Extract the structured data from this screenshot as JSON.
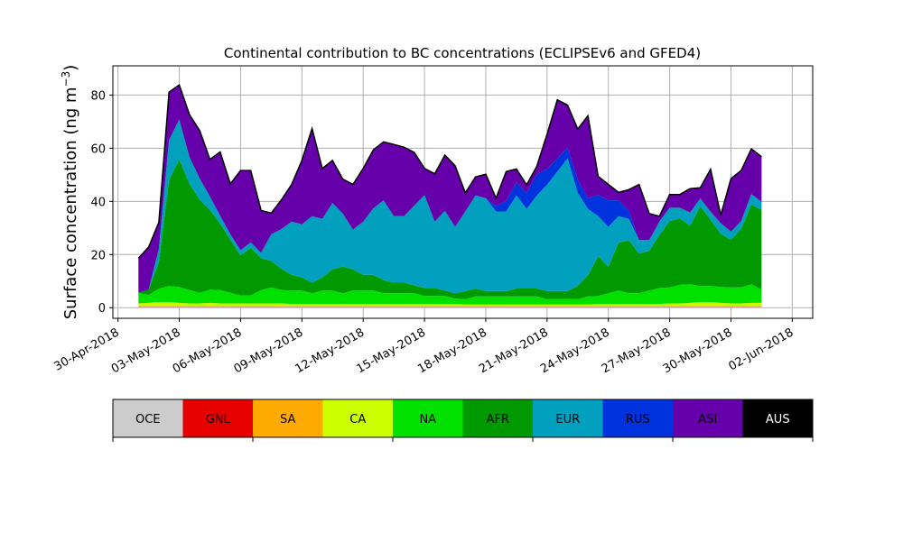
{
  "chart_data": {
    "type": "area",
    "stacked": true,
    "title": "Continental contribution to BC concentrations (ECLIPSEv6 and GFED4)",
    "ylabel_main": "Surface concentration (ng m",
    "ylabel_sup": "−3",
    "ylabel_end": ")",
    "xlabel": "",
    "grid": true,
    "ylim": [
      -4,
      91
    ],
    "xlim": [
      "2018-04-29T18:00",
      "2018-06-03T00:00"
    ],
    "x_ticks": [
      "30-Apr-2018",
      "03-May-2018",
      "06-May-2018",
      "09-May-2018",
      "12-May-2018",
      "15-May-2018",
      "18-May-2018",
      "21-May-2018",
      "24-May-2018",
      "27-May-2018",
      "30-May-2018",
      "02-Jun-2018"
    ],
    "y_ticks": [
      0,
      20,
      40,
      60,
      80
    ],
    "x": [
      "2018-05-01",
      "2018-05-01T12:00",
      "2018-05-02",
      "2018-05-02T12:00",
      "2018-05-03",
      "2018-05-03T12:00",
      "2018-05-04",
      "2018-05-04T12:00",
      "2018-05-05",
      "2018-05-05T12:00",
      "2018-05-06",
      "2018-05-06T12:00",
      "2018-05-07",
      "2018-05-07T12:00",
      "2018-05-08",
      "2018-05-08T12:00",
      "2018-05-09",
      "2018-05-09T12:00",
      "2018-05-10",
      "2018-05-10T12:00",
      "2018-05-11",
      "2018-05-11T12:00",
      "2018-05-12",
      "2018-05-12T12:00",
      "2018-05-13",
      "2018-05-13T12:00",
      "2018-05-14",
      "2018-05-14T12:00",
      "2018-05-15",
      "2018-05-15T12:00",
      "2018-05-16",
      "2018-05-16T12:00",
      "2018-05-17",
      "2018-05-17T12:00",
      "2018-05-18",
      "2018-05-18T12:00",
      "2018-05-19",
      "2018-05-19T12:00",
      "2018-05-20",
      "2018-05-20T12:00",
      "2018-05-21",
      "2018-05-21T12:00",
      "2018-05-22",
      "2018-05-22T12:00",
      "2018-05-23",
      "2018-05-23T12:00",
      "2018-05-24",
      "2018-05-24T12:00",
      "2018-05-25",
      "2018-05-25T12:00",
      "2018-05-26",
      "2018-05-26T12:00",
      "2018-05-27",
      "2018-05-27T12:00",
      "2018-05-28",
      "2018-05-28T12:00",
      "2018-05-29",
      "2018-05-29T12:00",
      "2018-05-30",
      "2018-05-30T12:00",
      "2018-05-31",
      "2018-05-31T12:00"
    ],
    "series": [
      {
        "name": "OCE",
        "color": "#cccccc",
        "values": [
          0.3,
          0.3,
          0.3,
          0.3,
          0.3,
          0.3,
          0.3,
          0.3,
          0.3,
          0.3,
          0.3,
          0.3,
          0.3,
          0.3,
          0.3,
          0.3,
          0.3,
          0.3,
          0.3,
          0.3,
          0.3,
          0.3,
          0.3,
          0.3,
          0.3,
          0.3,
          0.3,
          0.3,
          0.3,
          0.3,
          0.3,
          0.3,
          0.3,
          0.3,
          0.3,
          0.3,
          0.3,
          0.3,
          0.3,
          0.3,
          0.3,
          0.3,
          0.3,
          0.3,
          0.3,
          0.3,
          0.3,
          0.3,
          0.3,
          0.3,
          0.3,
          0.3,
          0.3,
          0.3,
          0.3,
          0.3,
          0.3,
          0.3,
          0.3,
          0.3,
          0.3,
          0.3
        ]
      },
      {
        "name": "GNL",
        "color": "#e60000",
        "values": [
          0.1,
          0.1,
          0.1,
          0.1,
          0.1,
          0.1,
          0.1,
          0.1,
          0.1,
          0.1,
          0.1,
          0.1,
          0.1,
          0.1,
          0.1,
          0.1,
          0.1,
          0.1,
          0.1,
          0.1,
          0.1,
          0.1,
          0.1,
          0.1,
          0.1,
          0.1,
          0.1,
          0.1,
          0.1,
          0.1,
          0.1,
          0.1,
          0.1,
          0.1,
          0.1,
          0.1,
          0.1,
          0.1,
          0.1,
          0.1,
          0.1,
          0.1,
          0.1,
          0.1,
          0.1,
          0.1,
          0.1,
          0.1,
          0.1,
          0.1,
          0.1,
          0.1,
          0.1,
          0.1,
          0.1,
          0.1,
          0.1,
          0.1,
          0.1,
          0.1,
          0.1,
          0.1
        ]
      },
      {
        "name": "SA",
        "color": "#ffaa00",
        "values": [
          0.2,
          0.2,
          0.2,
          0.2,
          0.2,
          0.2,
          0.2,
          0.2,
          0.2,
          0.2,
          0.2,
          0.2,
          0.2,
          0.2,
          0.2,
          0.2,
          0.2,
          0.2,
          0.2,
          0.2,
          0.2,
          0.2,
          0.2,
          0.2,
          0.2,
          0.2,
          0.2,
          0.2,
          0.2,
          0.2,
          0.2,
          0.2,
          0.2,
          0.2,
          0.2,
          0.2,
          0.2,
          0.2,
          0.2,
          0.2,
          0.2,
          0.2,
          0.2,
          0.2,
          0.2,
          0.2,
          0.2,
          0.2,
          0.2,
          0.2,
          0.2,
          0.2,
          0.2,
          0.2,
          0.2,
          0.2,
          0.2,
          0.2,
          0.2,
          0.2,
          0.2,
          0.2
        ]
      },
      {
        "name": "CA",
        "color": "#ccff00",
        "values": [
          1.0,
          1.2,
          1.5,
          1.5,
          1.2,
          1.0,
          1.0,
          1.2,
          1.0,
          1.0,
          1.0,
          1.0,
          1.0,
          1.0,
          1.0,
          0.8,
          0.8,
          0.8,
          0.8,
          0.8,
          0.8,
          0.8,
          0.8,
          0.8,
          0.8,
          0.8,
          0.8,
          0.8,
          0.8,
          0.8,
          0.8,
          0.8,
          0.6,
          0.6,
          0.6,
          0.6,
          0.6,
          0.6,
          0.6,
          0.6,
          0.6,
          0.6,
          0.6,
          0.6,
          0.6,
          0.8,
          0.8,
          0.8,
          0.8,
          0.8,
          0.8,
          0.8,
          1.0,
          1.0,
          1.2,
          1.5,
          1.5,
          1.2,
          1.0,
          1.0,
          1.2,
          1.2
        ]
      },
      {
        "name": "NA",
        "color": "#00e100",
        "values": [
          4,
          3,
          5,
          6,
          6,
          5,
          4,
          5,
          5,
          4,
          3,
          3,
          5,
          6,
          5,
          5,
          5,
          4,
          5,
          5,
          4,
          5,
          5,
          5,
          4,
          4,
          4,
          4,
          3,
          3,
          3,
          2,
          2,
          3,
          3,
          3,
          3,
          3,
          3,
          3,
          2,
          2,
          2,
          2,
          3,
          3,
          4,
          5,
          4,
          4,
          5,
          6,
          6,
          7,
          7,
          6,
          6,
          6,
          6,
          6,
          7,
          5
        ]
      },
      {
        "name": "AFR",
        "color": "#009900",
        "values": [
          0,
          2,
          10,
          40,
          48,
          40,
          35,
          30,
          25,
          20,
          15,
          18,
          12,
          10,
          8,
          6,
          5,
          4,
          5,
          8,
          10,
          8,
          6,
          6,
          5,
          4,
          4,
          3,
          3,
          3,
          2,
          2,
          3,
          3,
          2,
          2,
          2,
          3,
          3,
          3,
          3,
          3,
          3,
          5,
          8,
          15,
          10,
          18,
          20,
          15,
          15,
          20,
          25,
          25,
          22,
          30,
          25,
          20,
          18,
          22,
          30,
          30
        ]
      },
      {
        "name": "EUR",
        "color": "#00a0be",
        "values": [
          0,
          0,
          5,
          15,
          15,
          10,
          8,
          5,
          3,
          2,
          2,
          2,
          2,
          10,
          15,
          20,
          20,
          25,
          22,
          25,
          20,
          15,
          20,
          25,
          30,
          25,
          25,
          30,
          35,
          25,
          30,
          25,
          30,
          35,
          35,
          30,
          30,
          35,
          30,
          35,
          40,
          45,
          50,
          35,
          25,
          15,
          15,
          10,
          8,
          5,
          4,
          5,
          5,
          4,
          5,
          3,
          3,
          4,
          3,
          3,
          4,
          3
        ]
      },
      {
        "name": "RUS",
        "color": "#0033dd",
        "values": [
          0,
          0,
          0,
          0,
          0,
          0,
          0,
          0,
          0,
          0,
          0,
          0,
          0,
          0,
          0,
          0,
          0,
          0,
          0,
          0,
          0,
          0,
          0,
          0,
          0,
          0,
          0,
          0,
          0,
          0,
          0,
          0,
          0,
          0,
          0,
          2,
          4,
          5,
          6,
          8,
          6,
          5,
          4,
          5,
          4,
          8,
          10,
          6,
          3,
          0,
          0,
          0,
          0,
          0,
          0,
          0,
          0,
          0,
          0,
          0,
          0,
          0
        ]
      },
      {
        "name": "ASI",
        "color": "#6600aa",
        "values": [
          13,
          16,
          10,
          18,
          13,
          16,
          18,
          14,
          24,
          19,
          30,
          27,
          16,
          8,
          11,
          14,
          24,
          33,
          19,
          16,
          13,
          17,
          20,
          22,
          22,
          27,
          26,
          20,
          10,
          18,
          21,
          23,
          7,
          7,
          9,
          3,
          11,
          5,
          3,
          3,
          13,
          22,
          16,
          19,
          31,
          7,
          6,
          3,
          8,
          21,
          10,
          2,
          5,
          5,
          9,
          4,
          16,
          3,
          20,
          19,
          17,
          17
        ]
      },
      {
        "name": "AUS",
        "color": "#000000",
        "values": [
          0,
          0,
          0,
          0,
          0,
          0,
          0,
          0,
          0,
          0,
          0,
          0,
          0,
          0,
          0,
          0,
          0,
          0,
          0,
          0,
          0,
          0,
          0,
          0,
          0,
          0,
          0,
          0,
          0,
          0,
          0,
          0,
          0,
          0,
          0,
          0,
          0,
          0,
          0,
          0,
          0,
          0,
          0,
          0,
          0,
          0,
          0,
          0,
          0,
          0,
          0,
          0,
          0,
          0,
          0,
          0,
          0,
          0,
          0,
          0,
          0,
          0
        ]
      }
    ],
    "legend_labels": [
      "OCE",
      "GNL",
      "SA",
      "CA",
      "NA",
      "AFR",
      "EUR",
      "RUS",
      "ASI",
      "AUS"
    ]
  }
}
